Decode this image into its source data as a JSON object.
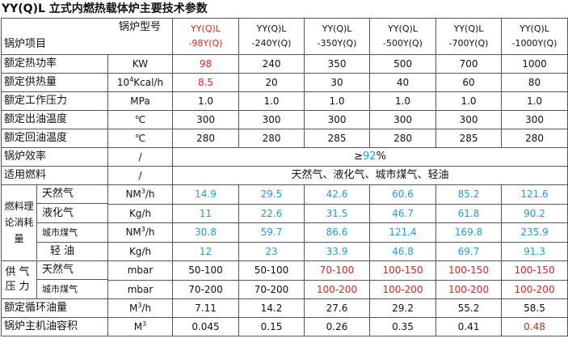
{
  "title": "YY(Q)L 立式内燃热载体炉主要技术参数",
  "header": {
    "model_label": "锅炉型号",
    "item_label": "锅炉项目",
    "models": [
      {
        "top": "YY(Q)L",
        "bottom": "-98Y(Q)"
      },
      {
        "top": "YY(Q)L",
        "bottom": "-240Y(Q)"
      },
      {
        "top": "YY(Q)L",
        "bottom": "-350Y(Q)"
      },
      {
        "top": "YY(Q)L",
        "bottom": "-500Y(Q)"
      },
      {
        "top": "YY(Q)L",
        "bottom": "-700Y(Q)"
      },
      {
        "top": "YY(Q)L",
        "bottom": "-1000Y(Q)"
      }
    ]
  },
  "rows": {
    "power": {
      "name": "额定热功率",
      "unit": "KW",
      "values": [
        "98",
        "240",
        "350",
        "500",
        "700",
        "1000"
      ]
    },
    "heat": {
      "name": "额定供热量",
      "unit_base": "10",
      "unit_exp": "4",
      "unit_rest": "Kcal/h",
      "values": [
        "8.5",
        "20",
        "30",
        "40",
        "60",
        "80"
      ]
    },
    "pressure": {
      "name": "额定工作压力",
      "unit": "MPa",
      "values": [
        "1.0",
        "1.0",
        "1.0",
        "1.0",
        "1.0",
        "1.0"
      ]
    },
    "outlet": {
      "name": "额定出油温度",
      "unit": "℃",
      "values": [
        "300",
        "300",
        "300",
        "300",
        "300",
        "300"
      ]
    },
    "return": {
      "name": "额定回油温度",
      "unit": "℃",
      "values": [
        "280",
        "280",
        "285",
        "280",
        "285",
        "280"
      ]
    },
    "efficiency": {
      "name": "锅炉效率",
      "unit": "/",
      "prefix": "≥",
      "value": "92",
      "suffix": "%"
    },
    "fuel": {
      "name": "适用燃料",
      "unit": "/",
      "value": "天然气、液化气、城市煤气、轻油"
    }
  },
  "consumption": {
    "group": "燃料理论消耗量",
    "items": [
      {
        "name": "天然气",
        "unit_pre": "NM",
        "unit_exp": "3",
        "unit_post": "/h",
        "values": [
          "14.9",
          "29.5",
          "42.6",
          "60.6",
          "85.2",
          "121.6"
        ]
      },
      {
        "name": "液化气",
        "unit": "Kg/h",
        "values": [
          "11",
          "22.6",
          "31.5",
          "46.7",
          "61.8",
          "90.2"
        ]
      },
      {
        "name": "城市煤气",
        "unit_pre": "NM",
        "unit_exp": "3",
        "unit_post": "/h",
        "values": [
          "30.8",
          "59.7",
          "86.6",
          "121.4",
          "169.8",
          "235.9"
        ]
      },
      {
        "name": "轻  油",
        "unit": "Kg/h",
        "values": [
          "12",
          "23",
          "33.9",
          "46.8",
          "69.7",
          "91.3"
        ]
      }
    ]
  },
  "supply": {
    "group": "供气压力",
    "items": [
      {
        "name": "天然气",
        "unit": "mbar",
        "values": [
          "50-100",
          "50-100",
          "70-100",
          "100-150",
          "100-150",
          "100-150"
        ]
      },
      {
        "name": "城市煤气",
        "unit": "mbar",
        "values": [
          "70-200",
          "70-200",
          "100-200",
          "100-200",
          "100-200",
          "100-200"
        ]
      }
    ]
  },
  "tail": {
    "circulation": {
      "name": "额定循环油量",
      "unit_pre": "M",
      "unit_exp": "3",
      "unit_post": "/h",
      "values": [
        "7.11",
        "14.2",
        "27.6",
        "29.2",
        "55.2",
        "58.5"
      ]
    },
    "capacity": {
      "name": "锅炉主机油容积",
      "unit_pre": "M",
      "unit_exp": "3",
      "values": [
        "0.045",
        "0.15",
        "0.26",
        "0.35",
        "0.41",
        "0.48"
      ]
    }
  },
  "colors": {
    "accent_red": "#e02020",
    "accent_blue": "#1a9fd6"
  }
}
